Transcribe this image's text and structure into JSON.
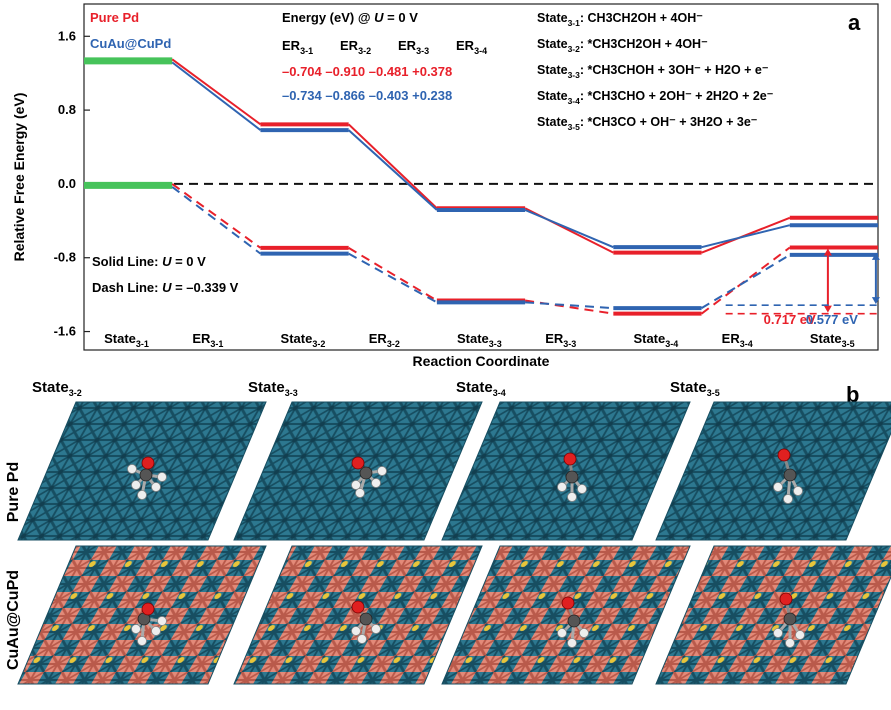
{
  "chart_data": {
    "type": "line",
    "panel_label": "a",
    "ylabel": "Relative Free Energy (eV)",
    "xlabel": "Reaction Coordinate",
    "ylim": [
      -1.8,
      1.95
    ],
    "y_ticks": [
      "1.6",
      "0.8",
      "0.0",
      "-0.8",
      "-1.6"
    ],
    "y_tick_values": [
      1.6,
      0.8,
      0.0,
      -0.8,
      -1.6
    ],
    "x_categories": [
      "State3-1",
      "ER3-1",
      "State3-2",
      "ER3-2",
      "State3-3",
      "ER3-3",
      "State3-4",
      "ER3-4",
      "State3-5"
    ],
    "x_category_labels": [
      {
        "main": "State",
        "sub": "3-1"
      },
      {
        "main": "ER",
        "sub": "3-1"
      },
      {
        "main": "State",
        "sub": "3-2"
      },
      {
        "main": "ER",
        "sub": "3-2"
      },
      {
        "main": "State",
        "sub": "3-3"
      },
      {
        "main": "ER",
        "sub": "3-3"
      },
      {
        "main": "State",
        "sub": "3-4"
      },
      {
        "main": "ER",
        "sub": "3-4"
      },
      {
        "main": "State",
        "sub": "3-5"
      }
    ],
    "legend": {
      "position": "top-left",
      "entries": [
        {
          "name": "Pure Pd",
          "color": "#e8202a"
        },
        {
          "name": "CuAu@CuPd",
          "color": "#2f64b1"
        }
      ]
    },
    "series": [
      {
        "name": "Pure Pd",
        "condition": "U = 0 V",
        "style": "solid",
        "color": "#e8202a",
        "values": [
          1.35,
          0.646,
          -0.264,
          -0.745,
          -0.367
        ]
      },
      {
        "name": "CuAu@CuPd",
        "condition": "U = 0 V",
        "style": "solid",
        "color": "#2f64b1",
        "values": [
          1.35,
          0.616,
          -0.25,
          -0.653,
          -0.415
        ]
      },
      {
        "name": "Pure Pd",
        "condition": "U = -0.339 V",
        "style": "dashed",
        "color": "#e8202a",
        "values": [
          0.0,
          -0.693,
          -1.264,
          -1.406,
          -0.689
        ]
      },
      {
        "name": "CuAu@CuPd",
        "condition": "U = -0.339 V",
        "style": "dashed",
        "color": "#2f64b1",
        "values": [
          0.0,
          -0.723,
          -1.251,
          -1.314,
          -0.737
        ]
      }
    ],
    "initial_state_color": "#46c35a",
    "zero_line": {
      "value": 0.0,
      "style": "dashed",
      "color": "#111111"
    },
    "energy_table": {
      "title_prefix": "Energy (eV) @ ",
      "title_var": "U",
      "title_suffix": " = 0 V",
      "headers": [
        {
          "main": "ER",
          "sub": "3-1"
        },
        {
          "main": "ER",
          "sub": "3-2"
        },
        {
          "main": "ER",
          "sub": "3-3"
        },
        {
          "main": "ER",
          "sub": "3-4"
        }
      ],
      "rows": [
        {
          "color": "#e8202a",
          "text": "–0.704 –0.910 –0.481 +0.378"
        },
        {
          "color": "#2f64b1",
          "text": "–0.734 –0.866 –0.403 +0.238"
        }
      ]
    },
    "state_descriptions": [
      {
        "label": "State",
        "sub": "3-1",
        "text": ": CH3CH2OH + 4OH⁻"
      },
      {
        "label": "State",
        "sub": "3-2",
        "text": ": *CH3CH2OH + 4OH⁻"
      },
      {
        "label": "State",
        "sub": "3-3",
        "text": ": *CH3CHOH + 3OH⁻ + H2O + e⁻"
      },
      {
        "label": "State",
        "sub": "3-4",
        "text": ": *CH3CHO + 2OH⁻ + 2H2O + 2e⁻"
      },
      {
        "label": "State",
        "sub": "3-5",
        "text": ": *CH3CO + OH⁻ + 3H2O + 3e⁻"
      }
    ],
    "line_notes": [
      {
        "prefix": "Solid Line: ",
        "var": "U",
        "suffix": " = 0 V"
      },
      {
        "prefix": "Dash Line: ",
        "var": "U",
        "suffix": " = –0.339 V"
      }
    ],
    "annotations": [
      {
        "text": "0.717 eV",
        "color": "#e8202a",
        "value": 0.717
      },
      {
        "text": "0.577 eV",
        "color": "#2f64b1",
        "value": 0.577
      }
    ]
  },
  "panel_b": {
    "label": "b",
    "columns": [
      {
        "main": "State",
        "sub": "3-2"
      },
      {
        "main": "State",
        "sub": "3-3"
      },
      {
        "main": "State",
        "sub": "3-4"
      },
      {
        "main": "State",
        "sub": "3-5"
      }
    ],
    "rows": [
      "Pure Pd",
      "CuAu@CuPd"
    ],
    "colors": {
      "pd": "#1f5f74",
      "pd_light": "#2b7a91",
      "cu": "#e07b6a",
      "au": "#e8c53a",
      "carbon": "#555555",
      "oxygen": "#e02020",
      "hydrogen": "#eeeeee"
    }
  }
}
